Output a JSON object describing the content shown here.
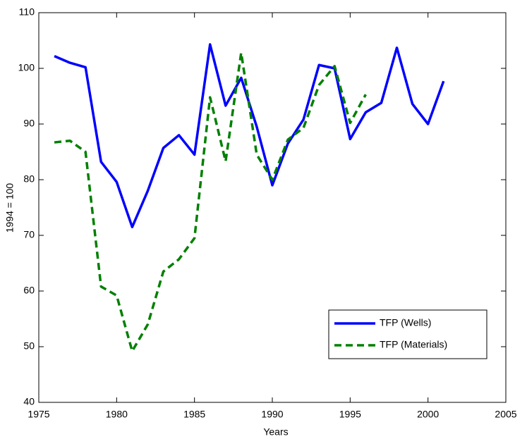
{
  "chart_data": {
    "type": "line",
    "x_label": "Years",
    "y_label": "1994 = 100",
    "x": [
      1976,
      1977,
      1978,
      1979,
      1980,
      1981,
      1982,
      1983,
      1984,
      1985,
      1986,
      1987,
      1988,
      1989,
      1990,
      1991,
      1992,
      1993,
      1994,
      1995,
      1996,
      1997,
      1998,
      1999,
      2000,
      2001
    ],
    "series": [
      {
        "name": "TFP (Wells)",
        "color": "#0000ff",
        "dash": false,
        "values": [
          102.2,
          101,
          100.2,
          83.2,
          79.6,
          71.5,
          78,
          85.7,
          88,
          84.5,
          104.3,
          93.3,
          98.3,
          89.5,
          79,
          86.5,
          90.8,
          100.6,
          100,
          87.3,
          92.1,
          93.8,
          103.7,
          93.6,
          90,
          97.7
        ]
      },
      {
        "name": "TFP (Materials)",
        "color": "#008000",
        "dash": true,
        "values": [
          86.7,
          87,
          85,
          60.8,
          59.2,
          49.2,
          54,
          63.5,
          65.7,
          69.5,
          94.8,
          83.3,
          102.8,
          84.5,
          80,
          87.2,
          89.3,
          97,
          100.4,
          90.2,
          95.3,
          null,
          null,
          null,
          null,
          null
        ]
      }
    ],
    "xlim": [
      1975,
      2005
    ],
    "xticks": [
      1975,
      1980,
      1985,
      1990,
      1995,
      2000,
      2005
    ],
    "ylim": [
      40,
      110
    ],
    "yticks": [
      40,
      50,
      60,
      70,
      80,
      90,
      100,
      110
    ],
    "grid": false,
    "legend": "lower right"
  }
}
